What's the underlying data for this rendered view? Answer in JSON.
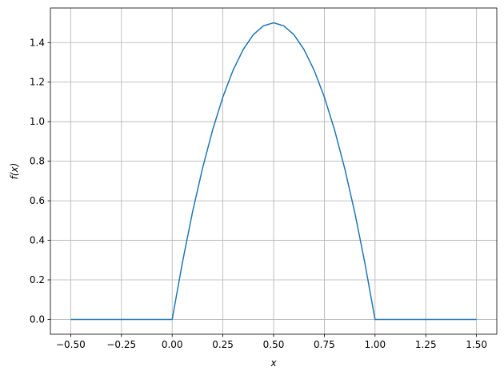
{
  "chart_data": {
    "type": "line",
    "title": "",
    "xlabel": "x",
    "ylabel": "f(x)",
    "xlim": [
      -0.6,
      1.6
    ],
    "ylim": [
      -0.075,
      1.575
    ],
    "grid": true,
    "color": "#1f77b4",
    "xticks": [
      -0.5,
      -0.25,
      0.0,
      0.25,
      0.5,
      0.75,
      1.0,
      1.25,
      1.5
    ],
    "xtick_labels": [
      "−0.50",
      "−0.25",
      "0.00",
      "0.25",
      "0.50",
      "0.75",
      "1.00",
      "1.25",
      "1.50"
    ],
    "yticks": [
      0.0,
      0.2,
      0.4,
      0.6,
      0.8,
      1.0,
      1.2,
      1.4
    ],
    "ytick_labels": [
      "0.0",
      "0.2",
      "0.4",
      "0.6",
      "0.8",
      "1.0",
      "1.2",
      "1.4"
    ],
    "series": [
      {
        "x": [
          -0.5,
          0,
          0.05,
          0.1,
          0.15,
          0.2,
          0.25,
          0.3,
          0.35,
          0.4,
          0.45,
          0.5,
          0.55,
          0.6,
          0.65,
          0.7,
          0.75,
          0.8,
          0.85,
          0.9,
          0.95,
          1.0,
          1.5
        ],
        "y": [
          0,
          0,
          0.285,
          0.54,
          0.765,
          0.96,
          1.125,
          1.26,
          1.365,
          1.44,
          1.485,
          1.5,
          1.485,
          1.44,
          1.365,
          1.26,
          1.125,
          0.96,
          0.765,
          0.54,
          0.285,
          0,
          0
        ]
      }
    ]
  }
}
